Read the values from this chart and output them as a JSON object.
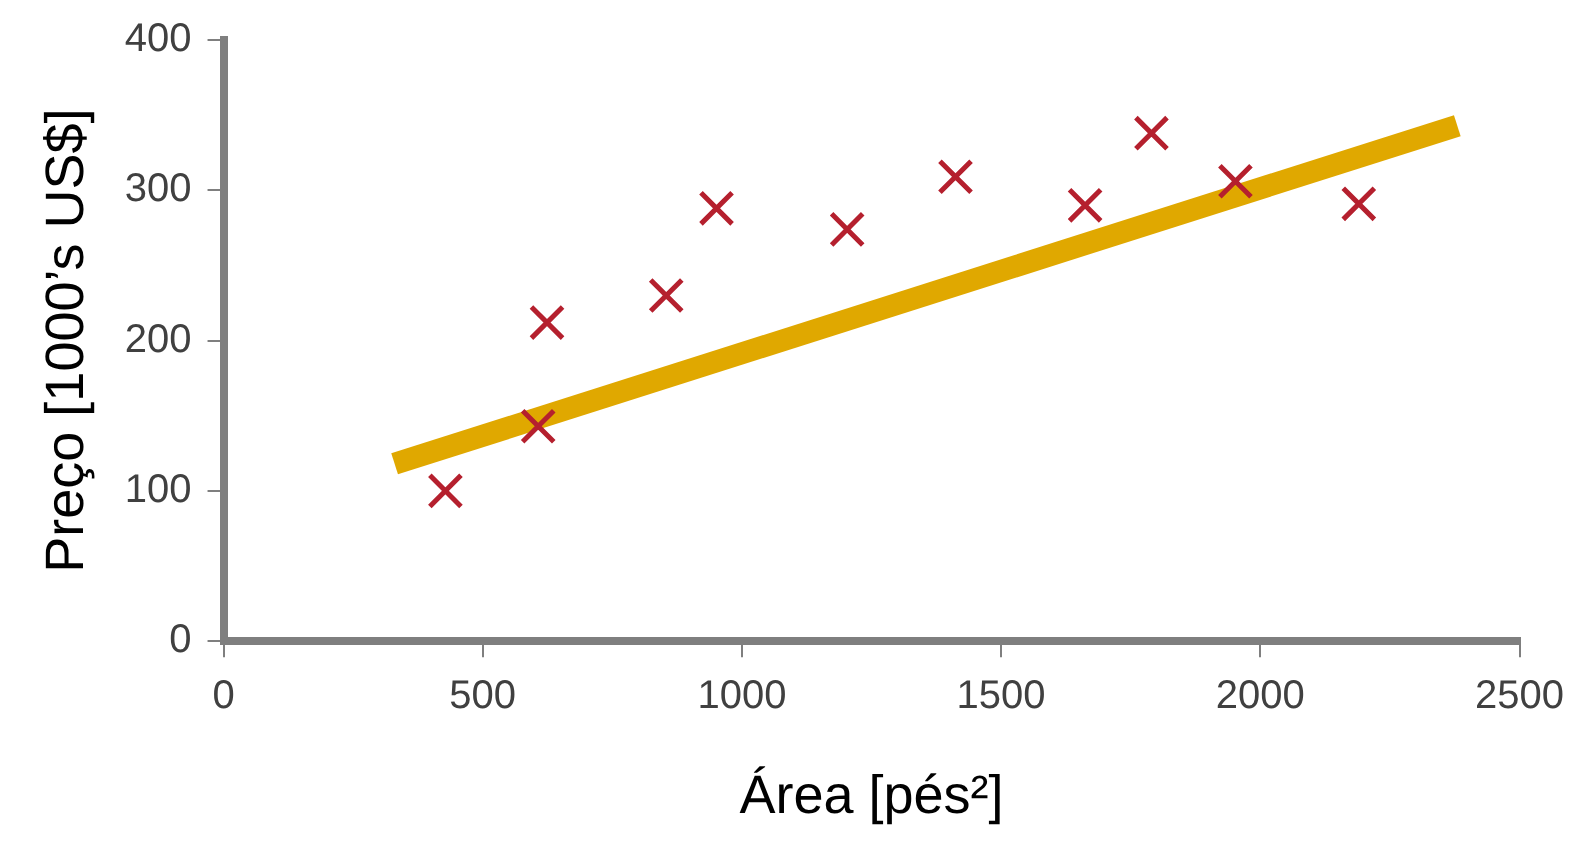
{
  "chart_data": {
    "type": "scatter",
    "xlabel": "Área [pés²]",
    "ylabel": "Preço [1000’s US$]",
    "xlim": [
      0,
      2500
    ],
    "xticks": [
      0,
      500,
      1000,
      1500,
      2000,
      2500
    ],
    "ylim": [
      0,
      400
    ],
    "yticks": [
      0,
      100,
      200,
      300,
      400
    ],
    "grid": false,
    "legend": false,
    "series": [
      {
        "type": "scatter",
        "marker": "cross",
        "color": "#b5202e",
        "x": [
          428,
          607,
          624,
          854,
          951,
          1203,
          1412,
          1662,
          1790,
          1952,
          2190
        ],
        "values": [
          100,
          143,
          212,
          230,
          288,
          274,
          309,
          290,
          338,
          306,
          291
        ]
      },
      {
        "type": "line",
        "marker": "none",
        "color": "#e0a800",
        "x": [
          330,
          2380
        ],
        "values": [
          118,
          343
        ]
      }
    ]
  }
}
